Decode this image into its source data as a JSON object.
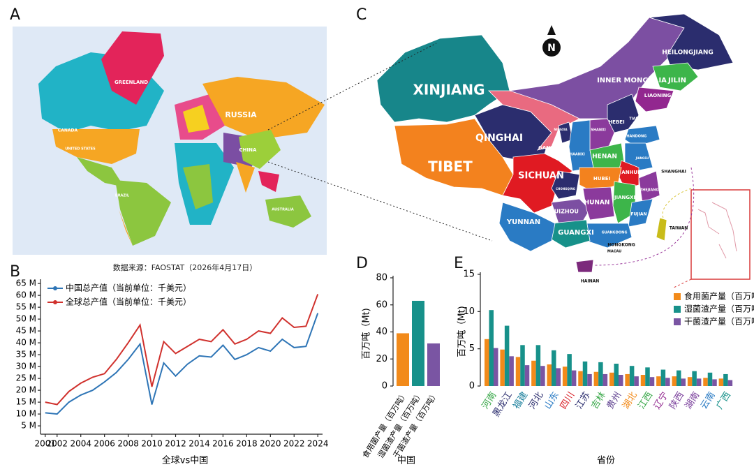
{
  "panels": [
    "A",
    "B",
    "C",
    "D",
    "E"
  ],
  "maps": {
    "world": {
      "labels": [
        "GREENLAND",
        "CANADA",
        "UNITED STATES",
        "RUSSIA",
        "CHINA",
        "BRAZIL",
        "AUSTRALIA"
      ]
    },
    "china": {
      "compass": "N",
      "labels": [
        "XINJIANG",
        "TIBET",
        "QINGHAI",
        "SICHUAN",
        "YUNNAN",
        "GUANGXI",
        "INNER MONGOLIA",
        "HEILONGJIANG",
        "JILIN",
        "LIAONING",
        "HEBEI",
        "TIANJIN",
        "SHANXI",
        "SHANDONG",
        "NINGXIA",
        "GANSU",
        "SHAANXI",
        "HENAN",
        "JIANGSU",
        "SHANGHAI",
        "ANHUI",
        "HUBEI",
        "CHONGQING",
        "HUNAN",
        "JIANGXI",
        "ZHEJIANG",
        "GUIZHOU",
        "FUJIAN",
        "GUANGDONG",
        "HONGKONG",
        "MACAU",
        "TAIWAN",
        "HAINAN"
      ]
    }
  },
  "chart_data": [
    {
      "type": "line",
      "source": "数据来源：FAOSTAT（2026年4月17日）",
      "x_label": "全球vs中国",
      "x": [
        2001,
        2002,
        2003,
        2004,
        2005,
        2006,
        2007,
        2008,
        2009,
        2010,
        2011,
        2012,
        2013,
        2014,
        2015,
        2016,
        2017,
        2018,
        2019,
        2020,
        2021,
        2022,
        2023,
        2024
      ],
      "series": [
        {
          "name": "中国总产值（当前单位：千美元）",
          "color": "#2e75b6",
          "values": [
            10.5,
            10,
            15,
            18,
            20,
            23.5,
            27.5,
            33,
            39.5,
            14,
            31.5,
            26,
            31,
            34.5,
            34,
            39,
            33,
            35,
            38,
            36.5,
            41.5,
            38,
            38.5,
            52.5
          ]
        },
        {
          "name": "全球总产值（当前单位：千美元）",
          "color": "#d0312d",
          "values": [
            15,
            14,
            19.5,
            23,
            25.5,
            27,
            33,
            40,
            47.5,
            21.5,
            40.5,
            35.5,
            38.5,
            41.5,
            40.5,
            45.5,
            39.5,
            41.5,
            45,
            44,
            50.5,
            46.5,
            47,
            60.5
          ]
        }
      ],
      "xlim": [
        2000.6,
        2024.4
      ],
      "xticks": [
        2001,
        2002,
        2004,
        2006,
        2008,
        2010,
        2012,
        2014,
        2016,
        2018,
        2020,
        2022,
        2024
      ],
      "ylim": [
        1.5,
        66.8
      ],
      "yticks": [
        {
          "value": 5,
          "label": "5 M"
        },
        {
          "value": 10,
          "label": "10 M"
        },
        {
          "value": 15,
          "label": "15 M"
        },
        {
          "value": 20,
          "label": "20 M"
        },
        {
          "value": 25,
          "label": "25 M"
        },
        {
          "value": 30,
          "label": "30 M"
        },
        {
          "value": 35,
          "label": "35 M"
        },
        {
          "value": 40,
          "label": "40 M"
        },
        {
          "value": 45,
          "label": "45 M"
        },
        {
          "value": 50,
          "label": "50 M"
        },
        {
          "value": 55,
          "label": "55 M"
        },
        {
          "value": 60,
          "label": "60 M"
        },
        {
          "value": 65,
          "label": "65 M"
        }
      ],
      "legend": "upper-left"
    },
    {
      "type": "bar",
      "x_label": "中国",
      "y_label": "百万吨（Mt)",
      "categories": [
        "食用菌产量（百万吨）",
        "湿菌渣产量（百万吨）",
        "干菌渣产量（百万吨）"
      ],
      "values": [
        39,
        63,
        31.5
      ],
      "colors": [
        "#f28a1a",
        "#17918a",
        "#7a55a3"
      ],
      "ylim": [
        0,
        80
      ],
      "yticks": [
        0,
        20,
        40,
        60,
        80
      ]
    },
    {
      "type": "grouped_bar",
      "x_label": "省份",
      "y_label": "百万吨（Mt)",
      "categories": [
        "河南",
        "黑龙江",
        "福建",
        "河北",
        "山东",
        "四川",
        "江苏",
        "吉林",
        "贵州",
        "湖北",
        "江西",
        "辽宁",
        "陕西",
        "湖南",
        "云南",
        "广西"
      ],
      "category_colors": [
        "#3aa84a",
        "#2b2d6e",
        "#1a7f9c",
        "#2b2d6e",
        "#2a7bc4",
        "#d81f26",
        "#2b2d6e",
        "#3aa84a",
        "#5a3c8c",
        "#f28a1a",
        "#3aa84a",
        "#92278f",
        "#7a3f9c",
        "#7a3f9c",
        "#2a7bc4",
        "#17918a"
      ],
      "series": [
        {
          "name": "食用菌产量（百万吨）",
          "color": "#f28a1a",
          "values": [
            6.3,
            4.9,
            3.9,
            3.4,
            2.9,
            2.6,
            2.0,
            1.9,
            1.8,
            1.6,
            1.5,
            1.3,
            1.3,
            1.2,
            1.1,
            1.0
          ]
        },
        {
          "name": "湿菌渣产量（百万吨）",
          "color": "#17918a",
          "values": [
            10.2,
            8.1,
            5.5,
            5.5,
            4.8,
            4.3,
            3.3,
            3.2,
            3.0,
            2.7,
            2.5,
            2.2,
            2.1,
            2.0,
            1.8,
            1.6
          ]
        },
        {
          "name": "干菌渣产量（百万吨）",
          "color": "#7a55a3",
          "values": [
            5.1,
            4.0,
            2.8,
            2.7,
            2.4,
            2.1,
            1.6,
            1.6,
            1.5,
            1.3,
            1.2,
            1.1,
            1.0,
            1.0,
            0.9,
            0.8
          ]
        }
      ],
      "ylim": [
        0,
        15
      ],
      "yticks": [
        0,
        5,
        10,
        15
      ],
      "legend": "right"
    }
  ]
}
